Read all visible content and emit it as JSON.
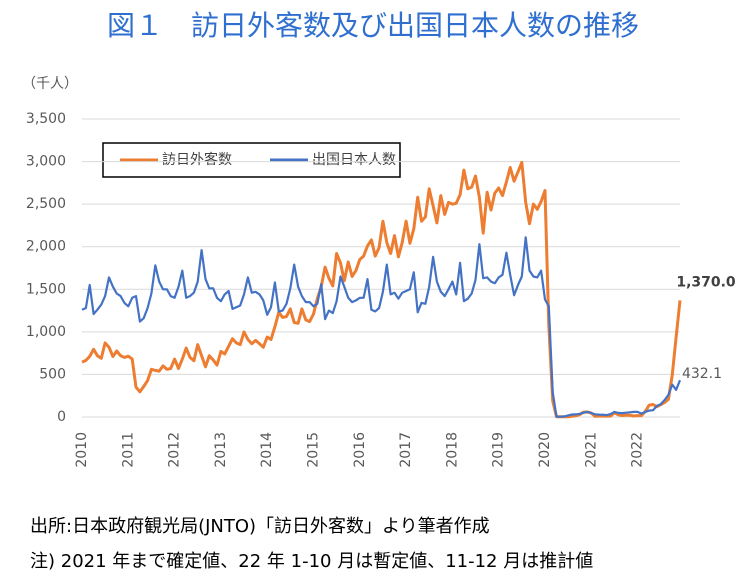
{
  "chart_data": {
    "type": "line",
    "title": "図１　訪日外客数及び出国日本人数の推移",
    "y_label": "（千人）",
    "categories": [
      "2010",
      null,
      null,
      null,
      null,
      null,
      null,
      null,
      null,
      null,
      null,
      null,
      "2011",
      null,
      null,
      null,
      null,
      null,
      null,
      null,
      null,
      null,
      null,
      null,
      "2012",
      null,
      null,
      null,
      null,
      null,
      null,
      null,
      null,
      null,
      null,
      null,
      "2013",
      null,
      null,
      null,
      null,
      null,
      null,
      null,
      null,
      null,
      null,
      null,
      "2014",
      null,
      null,
      null,
      null,
      null,
      null,
      null,
      null,
      null,
      null,
      null,
      "2015",
      null,
      null,
      null,
      null,
      null,
      null,
      null,
      null,
      null,
      null,
      null,
      "2016",
      null,
      null,
      null,
      null,
      null,
      null,
      null,
      null,
      null,
      null,
      null,
      "2017",
      null,
      null,
      null,
      null,
      null,
      null,
      null,
      null,
      null,
      null,
      null,
      "2018",
      null,
      null,
      null,
      null,
      null,
      null,
      null,
      null,
      null,
      null,
      null,
      "2019",
      null,
      null,
      null,
      null,
      null,
      null,
      null,
      null,
      null,
      null,
      null,
      "2020",
      null,
      null,
      null,
      null,
      null,
      null,
      null,
      null,
      null,
      null,
      null,
      "2021",
      null,
      null,
      null,
      null,
      null,
      null,
      null,
      null,
      null,
      null,
      null,
      "2022",
      null,
      null,
      null,
      null,
      null,
      null,
      null,
      null,
      null,
      null,
      null
    ],
    "series": [
      {
        "name": "訪日外客数",
        "color": "#ed7d31",
        "values": [
          645,
          665,
          712,
          795,
          720,
          690,
          870,
          820,
          710,
          775,
          720,
          700,
          714,
          680,
          350,
          296,
          358,
          427,
          560,
          547,
          539,
          600,
          560,
          570,
          680,
          570,
          680,
          810,
          700,
          660,
          850,
          720,
          590,
          720,
          670,
          610,
          770,
          740,
          830,
          920,
          870,
          850,
          1000,
          910,
          860,
          900,
          860,
          820,
          940,
          910,
          1060,
          1230,
          1170,
          1180,
          1270,
          1110,
          1100,
          1270,
          1140,
          1120,
          1210,
          1390,
          1530,
          1760,
          1630,
          1540,
          1920,
          1810,
          1600,
          1820,
          1650,
          1720,
          1850,
          1890,
          2010,
          2080,
          1890,
          1990,
          2300,
          2050,
          1920,
          2130,
          1880,
          2050,
          2300,
          2040,
          2210,
          2580,
          2300,
          2350,
          2680,
          2480,
          2280,
          2600,
          2380,
          2520,
          2500,
          2510,
          2610,
          2900,
          2680,
          2700,
          2830,
          2580,
          2160,
          2640,
          2430,
          2630,
          2690,
          2600,
          2760,
          2930,
          2770,
          2880,
          2990,
          2520,
          2270,
          2500,
          2440,
          2530,
          2660,
          1080,
          190,
          3,
          2,
          3,
          4,
          9,
          14,
          28,
          57,
          59,
          46,
          7,
          12,
          11,
          10,
          10,
          51,
          26,
          18,
          22,
          21,
          12,
          17,
          17,
          66,
          139,
          147,
          121,
          144,
          170,
          207,
          499,
          935,
          1370
        ],
        "value_labels": [
          null,
          null,
          null,
          null,
          null,
          null,
          null,
          null,
          null,
          null,
          null,
          null,
          null,
          null,
          null,
          null,
          null,
          null,
          null,
          null,
          null,
          null,
          null,
          null,
          null,
          null,
          null,
          null,
          null,
          null,
          null,
          null,
          null,
          null,
          null,
          null,
          null,
          null,
          null,
          null,
          null,
          null,
          null,
          null,
          null,
          null,
          null,
          null,
          null,
          null,
          null,
          null,
          null,
          null,
          null,
          null,
          null,
          null,
          null,
          null,
          null,
          null,
          null,
          null,
          null,
          null,
          null,
          null,
          null,
          null,
          null,
          null,
          null,
          null,
          null,
          null,
          null,
          null,
          null,
          null,
          null,
          null,
          null,
          null,
          null,
          null,
          null,
          null,
          null,
          null,
          null,
          null,
          null,
          null,
          null,
          null,
          null,
          null,
          null,
          null,
          null,
          null,
          null,
          null,
          null,
          null,
          null,
          null,
          null,
          null,
          null,
          null,
          null,
          null,
          null,
          null,
          null,
          null,
          null,
          null,
          null,
          null,
          null,
          null,
          null,
          null,
          null,
          null,
          null,
          null,
          null,
          null,
          null,
          null,
          null,
          null,
          null,
          null,
          null,
          null,
          null,
          null,
          null,
          null,
          null,
          null,
          null,
          null,
          null,
          null,
          null,
          null,
          null,
          null,
          null,
          "1,370.0"
        ]
      },
      {
        "name": "出国日本人数",
        "color": "#4472c4",
        "values": [
          1260,
          1280,
          1550,
          1210,
          1260,
          1320,
          1420,
          1640,
          1530,
          1450,
          1420,
          1340,
          1300,
          1400,
          1420,
          1120,
          1160,
          1280,
          1450,
          1780,
          1590,
          1500,
          1500,
          1420,
          1400,
          1530,
          1720,
          1400,
          1420,
          1460,
          1590,
          1960,
          1620,
          1510,
          1510,
          1400,
          1360,
          1440,
          1480,
          1270,
          1290,
          1310,
          1440,
          1640,
          1460,
          1470,
          1440,
          1370,
          1200,
          1290,
          1580,
          1240,
          1250,
          1330,
          1510,
          1790,
          1530,
          1420,
          1350,
          1350,
          1300,
          1330,
          1560,
          1150,
          1250,
          1220,
          1360,
          1650,
          1530,
          1400,
          1350,
          1370,
          1400,
          1400,
          1620,
          1260,
          1240,
          1280,
          1470,
          1790,
          1440,
          1460,
          1390,
          1460,
          1480,
          1500,
          1700,
          1230,
          1340,
          1330,
          1530,
          1880,
          1590,
          1470,
          1420,
          1500,
          1590,
          1440,
          1810,
          1360,
          1390,
          1450,
          1610,
          2030,
          1630,
          1640,
          1590,
          1570,
          1640,
          1670,
          1930,
          1670,
          1430,
          1550,
          1650,
          2110,
          1720,
          1650,
          1640,
          1720,
          1380,
          1300,
          290,
          4,
          3,
          6,
          19,
          29,
          31,
          37,
          51,
          60,
          47,
          32,
          28,
          27,
          22,
          34,
          60,
          48,
          46,
          50,
          55,
          60,
          60,
          40,
          60,
          75,
          80,
          130,
          150,
          200,
          260,
          380,
          320,
          432.1
        ],
        "value_labels": [
          null,
          null,
          null,
          null,
          null,
          null,
          null,
          null,
          null,
          null,
          null,
          null,
          null,
          null,
          null,
          null,
          null,
          null,
          null,
          null,
          null,
          null,
          null,
          null,
          null,
          null,
          null,
          null,
          null,
          null,
          null,
          null,
          null,
          null,
          null,
          null,
          null,
          null,
          null,
          null,
          null,
          null,
          null,
          null,
          null,
          null,
          null,
          null,
          null,
          null,
          null,
          null,
          null,
          null,
          null,
          null,
          null,
          null,
          null,
          null,
          null,
          null,
          null,
          null,
          null,
          null,
          null,
          null,
          null,
          null,
          null,
          null,
          null,
          null,
          null,
          null,
          null,
          null,
          null,
          null,
          null,
          null,
          null,
          null,
          null,
          null,
          null,
          null,
          null,
          null,
          null,
          null,
          null,
          null,
          null,
          null,
          null,
          null,
          null,
          null,
          null,
          null,
          null,
          null,
          null,
          null,
          null,
          null,
          null,
          null,
          null,
          null,
          null,
          null,
          null,
          null,
          null,
          null,
          null,
          null,
          null,
          null,
          null,
          null,
          null,
          null,
          null,
          null,
          null,
          null,
          null,
          null,
          null,
          null,
          null,
          null,
          null,
          null,
          null,
          null,
          null,
          null,
          null,
          null,
          null,
          null,
          null,
          null,
          null,
          null,
          null,
          null,
          null,
          null,
          null,
          "432.1"
        ]
      }
    ],
    "ylim": [
      0,
      3500
    ],
    "yticks": [
      0,
      500,
      {
        "value": 1000,
        "label": "1,000"
      },
      {
        "value": 1500,
        "label": "1,500"
      },
      {
        "value": 2000,
        "label": "2,000"
      },
      {
        "value": 2500,
        "label": "2,500"
      },
      {
        "value": 3000,
        "label": "3,000"
      },
      {
        "value": 3500,
        "label": "3,500"
      }
    ],
    "grid": true,
    "legend": "top-left",
    "notes": [
      "出所:日本政府観光局(JNTO)「訪日外客数」より筆者作成",
      "注) 2021 年まで確定値、22 年 1-10 月は暫定値、11-12 月は推計値"
    ]
  }
}
